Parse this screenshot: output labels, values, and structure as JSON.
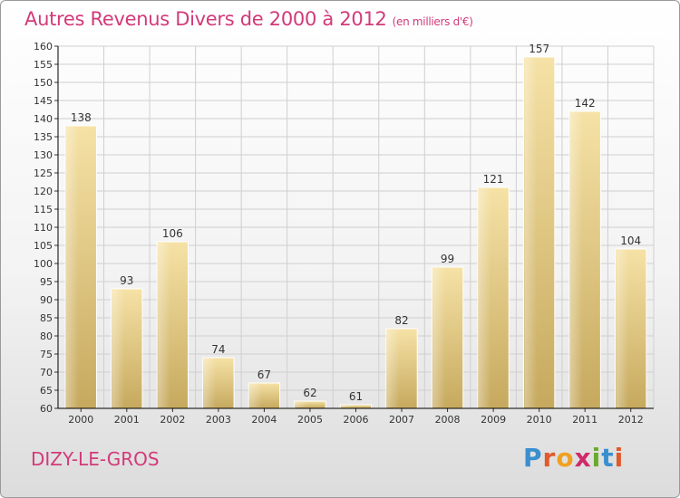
{
  "header": {
    "title": "Autres Revenus Divers de 2000 à 2012",
    "subtitle": "(en milliers d'€)"
  },
  "footer": {
    "town": "DIZY-LE-GROS",
    "logo_letters": [
      "P",
      "r",
      "o",
      "x",
      "i",
      "t",
      "i"
    ],
    "logo_colors": [
      "#3a8fd0",
      "#e05a2a",
      "#f0a020",
      "#d02a6a",
      "#6aaa2a",
      "#3a8fd0",
      "#e05a2a"
    ]
  },
  "colors": {
    "title": "#d23a7a",
    "bar_light": "#f5dfa0",
    "bar_dark": "#c8ac62",
    "grid": "#cfcfcf",
    "axis": "#000000"
  },
  "chart_data": {
    "type": "bar",
    "categories": [
      "2000",
      "2001",
      "2002",
      "2003",
      "2004",
      "2005",
      "2006",
      "2007",
      "2008",
      "2009",
      "2010",
      "2011",
      "2012"
    ],
    "values": [
      138,
      93,
      106,
      74,
      67,
      62,
      61,
      82,
      99,
      121,
      157,
      142,
      104
    ],
    "ylim": [
      60,
      160
    ],
    "yticks": [
      60,
      65,
      70,
      75,
      80,
      85,
      90,
      95,
      100,
      105,
      110,
      115,
      120,
      125,
      130,
      135,
      140,
      145,
      150,
      155,
      160
    ],
    "grid": true,
    "legend": "none"
  }
}
